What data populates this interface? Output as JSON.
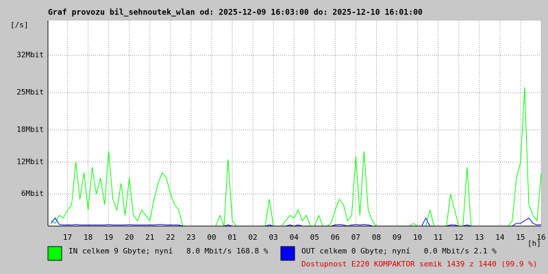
{
  "chart_data": {
    "type": "line",
    "title": "Graf provozu bil_sehnoutek_wlan od: 2025-12-09 16:03:00 do: 2025-12-10 16:01:00",
    "y_label": "[/s]",
    "x_label": "[h]",
    "footer": "Dostupnost E220 KOMPAKTOR semik 1439 z 1440 (99.9 %)",
    "grid": true,
    "xlim": [
      16.05,
      40.0
    ],
    "ylim": [
      0,
      38.5
    ],
    "yticks": [
      {
        "value": 6,
        "label": "6Mbit"
      },
      {
        "value": 12,
        "label": "12Mbit"
      },
      {
        "value": 18,
        "label": "18Mbit"
      },
      {
        "value": 25,
        "label": "25Mbit"
      },
      {
        "value": 32,
        "label": "32Mbit"
      }
    ],
    "xticks": [
      17,
      18,
      19,
      20,
      21,
      22,
      23,
      {
        "value": 24,
        "label": "00"
      },
      {
        "value": 25,
        "label": "01"
      },
      {
        "value": 26,
        "label": "02"
      },
      {
        "value": 27,
        "label": "03"
      },
      {
        "value": 28,
        "label": "04"
      },
      {
        "value": 29,
        "label": "05"
      },
      {
        "value": 30,
        "label": "06"
      },
      {
        "value": 31,
        "label": "07"
      },
      {
        "value": 32,
        "label": "08"
      },
      {
        "value": 33,
        "label": "09"
      },
      {
        "value": 34,
        "label": "10"
      },
      {
        "value": 35,
        "label": "11"
      },
      {
        "value": 36,
        "label": "12"
      },
      {
        "value": 37,
        "label": "13"
      },
      {
        "value": 38,
        "label": "14"
      },
      {
        "value": 39,
        "label": "15"
      },
      {
        "value": 40,
        "label": "16"
      }
    ],
    "x": [
      16.2,
      16.4,
      16.6,
      16.8,
      17.0,
      17.2,
      17.4,
      17.6,
      17.8,
      18.0,
      18.2,
      18.4,
      18.6,
      18.8,
      19.0,
      19.2,
      19.4,
      19.6,
      19.8,
      20.0,
      20.2,
      20.4,
      20.6,
      20.8,
      21.0,
      21.2,
      21.4,
      21.6,
      21.8,
      22.0,
      22.2,
      22.4,
      22.6,
      22.8,
      23.0,
      23.2,
      23.4,
      23.6,
      23.8,
      24.0,
      24.2,
      24.4,
      24.6,
      24.8,
      25.0,
      25.2,
      25.4,
      25.6,
      25.8,
      26.0,
      26.2,
      26.4,
      26.6,
      26.8,
      27.0,
      27.2,
      27.4,
      27.6,
      27.8,
      28.0,
      28.2,
      28.4,
      28.6,
      28.8,
      29.0,
      29.2,
      29.4,
      29.6,
      29.8,
      30.0,
      30.2,
      30.4,
      30.6,
      30.8,
      31.0,
      31.2,
      31.4,
      31.6,
      31.8,
      32.0,
      32.2,
      32.4,
      32.6,
      32.8,
      33.0,
      33.2,
      33.4,
      33.6,
      33.8,
      34.0,
      34.2,
      34.4,
      34.6,
      34.8,
      35.0,
      35.2,
      35.4,
      35.6,
      35.8,
      36.0,
      36.2,
      36.4,
      36.6,
      36.8,
      37.0,
      37.2,
      37.4,
      37.6,
      37.8,
      38.0,
      38.2,
      38.4,
      38.6,
      38.8,
      39.0,
      39.2,
      39.4,
      39.6,
      39.8,
      40.0
    ],
    "series": [
      {
        "name": "IN celkem 9 Gbyte; nyní   8.0 Mbit/s 168.8 %",
        "color": "#00ff00",
        "values": [
          1,
          0.5,
          2,
          1.5,
          3,
          4,
          12,
          5,
          10,
          3,
          11,
          6,
          9,
          4,
          14,
          5,
          3,
          8,
          2,
          9,
          2,
          1,
          3,
          2,
          1,
          5,
          8,
          10,
          9,
          6,
          4,
          3,
          0,
          0,
          0,
          0,
          0,
          0,
          0,
          0,
          0,
          2,
          0,
          12.5,
          1,
          0,
          0,
          0,
          0,
          0,
          0,
          0,
          0,
          5,
          0,
          0,
          0,
          1,
          2,
          1.5,
          3,
          1,
          2,
          0,
          0,
          2,
          0,
          0,
          0.5,
          3,
          5,
          4,
          1,
          2,
          13,
          2,
          14,
          3,
          1,
          0,
          0,
          0,
          0,
          0,
          0,
          0,
          0,
          0,
          0.5,
          0,
          0,
          0,
          3,
          0,
          0,
          0,
          0,
          6,
          3,
          0,
          0,
          11,
          0,
          0,
          0,
          0,
          0,
          0,
          0,
          0,
          0,
          0,
          1,
          9,
          12,
          26,
          4,
          2,
          1,
          10
        ]
      },
      {
        "name": "OUT celkem 0 Gbyte; nyní   0.0 Mbit/s 2.1 %",
        "color": "#0000ff",
        "values": [
          0.5,
          1.5,
          0.3,
          0.2,
          0.2,
          0.2,
          0.3,
          0.2,
          0.2,
          0.2,
          0.2,
          0.2,
          0.2,
          0.2,
          0.3,
          0.2,
          0.2,
          0.2,
          0.2,
          0.3,
          0.2,
          0.2,
          0.2,
          0.2,
          0.2,
          0.2,
          0.3,
          0.3,
          0.2,
          0.2,
          0.2,
          0.2,
          0,
          0,
          0,
          0,
          0,
          0,
          0,
          0,
          0,
          0,
          0,
          0.2,
          0,
          0,
          0,
          0,
          0,
          0,
          0,
          0,
          0,
          0.2,
          0,
          0,
          0,
          0,
          0.2,
          0,
          0.2,
          0,
          0,
          0,
          0,
          0,
          0,
          0,
          0,
          0.2,
          0.3,
          0.2,
          0,
          0.2,
          0.3,
          0.2,
          0.3,
          0.2,
          0,
          0,
          0,
          0,
          0,
          0,
          0,
          0,
          0,
          0,
          0,
          0,
          0,
          1.5,
          0,
          0,
          0,
          0,
          0,
          0.2,
          0.2,
          0,
          0,
          0.2,
          0,
          0,
          0,
          0,
          0,
          0,
          0,
          0,
          0,
          0,
          0,
          0.5,
          0.5,
          1,
          1.5,
          0.5,
          0.2,
          0.3
        ]
      }
    ]
  }
}
